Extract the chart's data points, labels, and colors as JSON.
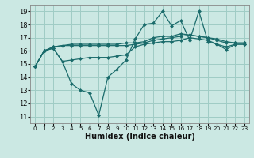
{
  "title": "",
  "xlabel": "Humidex (Indice chaleur)",
  "ylabel": "",
  "xlim": [
    -0.5,
    23.5
  ],
  "ylim": [
    10.5,
    19.5
  ],
  "yticks": [
    11,
    12,
    13,
    14,
    15,
    16,
    17,
    18,
    19
  ],
  "xticks": [
    0,
    1,
    2,
    3,
    4,
    5,
    6,
    7,
    8,
    9,
    10,
    11,
    12,
    13,
    14,
    15,
    16,
    17,
    18,
    19,
    20,
    21,
    22,
    23
  ],
  "background_color": "#cbe8e3",
  "grid_color": "#9fccc5",
  "line_color": "#1a6b6b",
  "lines": [
    [
      14.8,
      16.0,
      16.2,
      15.2,
      13.5,
      13.0,
      12.8,
      11.1,
      14.0,
      14.6,
      15.3,
      16.9,
      18.0,
      18.1,
      19.0,
      17.9,
      18.3,
      16.8,
      19.0,
      16.7,
      16.5,
      16.1,
      16.5,
      16.5
    ],
    [
      14.8,
      16.0,
      16.2,
      15.2,
      15.3,
      15.4,
      15.5,
      15.5,
      15.5,
      15.6,
      15.7,
      16.3,
      16.5,
      16.6,
      16.7,
      16.7,
      16.8,
      17.0,
      16.9,
      16.8,
      16.5,
      16.3,
      16.5,
      16.5
    ],
    [
      14.8,
      16.0,
      16.3,
      16.4,
      16.4,
      16.4,
      16.4,
      16.4,
      16.4,
      16.4,
      16.4,
      16.5,
      16.6,
      16.8,
      16.9,
      17.0,
      17.1,
      17.2,
      17.1,
      17.0,
      16.8,
      16.6,
      16.6,
      16.6
    ],
    [
      14.8,
      16.0,
      16.3,
      16.4,
      16.5,
      16.5,
      16.5,
      16.5,
      16.5,
      16.5,
      16.6,
      16.6,
      16.7,
      17.0,
      17.1,
      17.1,
      17.3,
      17.2,
      17.1,
      17.0,
      16.9,
      16.7,
      16.6,
      16.6
    ]
  ],
  "figsize": [
    3.2,
    2.0
  ],
  "dpi": 100,
  "tick_fontsize": 6,
  "xlabel_fontsize": 7,
  "marker_size": 2.5,
  "linewidth": 0.9
}
